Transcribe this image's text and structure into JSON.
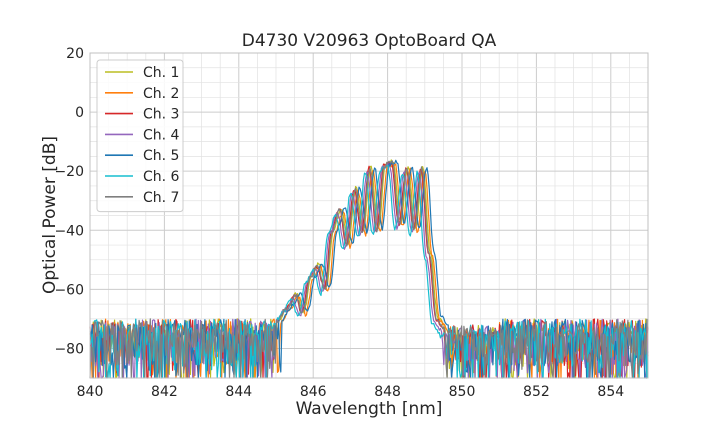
{
  "chart_data": {
    "type": "line",
    "title": "D4730 V20963 OptoBoard QA",
    "xlabel": "Wavelength [nm]",
    "ylabel": "Optical Power [dB]",
    "xlim": [
      840,
      855
    ],
    "ylim": [
      -90,
      20
    ],
    "x_major_ticks": [
      840,
      842,
      844,
      846,
      848,
      850,
      852,
      854
    ],
    "y_major_ticks": [
      -80,
      -60,
      -40,
      -20,
      0,
      20
    ],
    "x_tick_labels": [
      "840",
      "842",
      "844",
      "846",
      "848",
      "850",
      "852",
      "854"
    ],
    "y_tick_labels": [
      "−80",
      "−60",
      "−40",
      "−20",
      "0",
      "20"
    ],
    "x_minor_step": 0.5,
    "y_minor_step": 5,
    "grid": true,
    "legend_position": "top-left",
    "noise_floor_db": -72,
    "spectrum_profile": {
      "x": [
        845.0,
        845.3,
        845.5,
        845.7,
        845.9,
        846.1,
        846.3,
        846.5,
        846.7,
        846.9,
        847.1,
        847.3,
        847.5,
        847.7,
        847.9,
        848.1,
        848.3,
        848.5,
        848.7,
        848.9,
        849.1,
        849.3,
        849.5
      ],
      "y": [
        -71,
        -66,
        -62,
        -68,
        -56,
        -52,
        -60,
        -40,
        -33,
        -45,
        -26,
        -41,
        -19,
        -40,
        -18,
        -17,
        -38,
        -19,
        -40,
        -19,
        -48,
        -70,
        -73
      ]
    },
    "series": [
      {
        "name": "Ch. 1",
        "color": "#bcbd22",
        "shift_nm": 0.05,
        "offset_db": 0.5
      },
      {
        "name": "Ch. 2",
        "color": "#ff7f0e",
        "shift_nm": 0.1,
        "offset_db": -0.5
      },
      {
        "name": "Ch. 3",
        "color": "#d62728",
        "shift_nm": 0.0,
        "offset_db": 0.0
      },
      {
        "name": "Ch. 4",
        "color": "#9467bd",
        "shift_nm": -0.05,
        "offset_db": -1.0
      },
      {
        "name": "Ch. 5",
        "color": "#1f77b4",
        "shift_nm": 0.15,
        "offset_db": 0.5
      },
      {
        "name": "Ch. 6",
        "color": "#17becf",
        "shift_nm": -0.1,
        "offset_db": -1.5
      },
      {
        "name": "Ch. 7",
        "color": "#7f7f7f",
        "shift_nm": 0.02,
        "offset_db": 0.0
      }
    ]
  }
}
